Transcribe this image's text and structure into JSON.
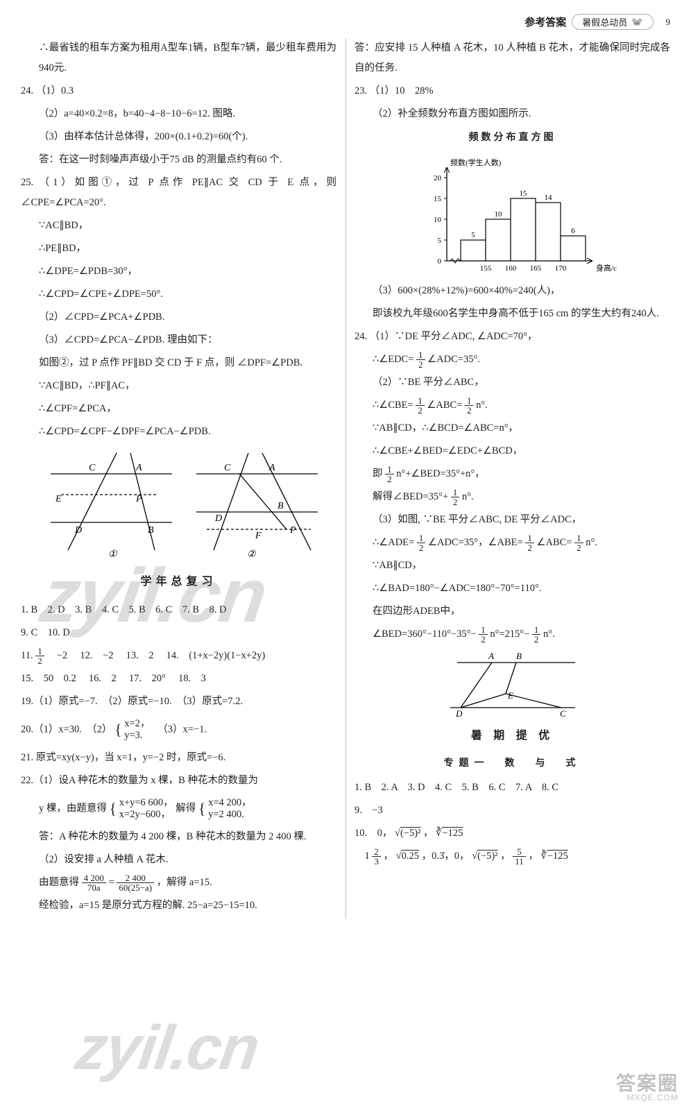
{
  "header": {
    "ref_answer": "参考答案",
    "badge_text": "暑假总动员",
    "page_number": "9"
  },
  "left": {
    "intro": "∴最省钱的租车方案为租用A型车1辆，B型车7辆，最少租车费用为940元.",
    "q24": {
      "num": "24.",
      "p1": "（1）0.3",
      "p2": "（2）a=40×0.2=8，b=40−4−8−10−6=12. 图略.",
      "p3": "（3）由样本估计总体得，200×(0.1+0.2)=60(个).",
      "p3b": "答：在这一时刻噪声声级小于75 dB 的测量点约有60 个."
    },
    "q25": {
      "num": "25.",
      "p1a": "（1）如图①，过 P 点作 PE∥AC 交 CD 于 E 点，则 ∠CPE=∠PCA=20°.",
      "p1b": "∵AC∥BD，",
      "p1c": "∴PE∥BD，",
      "p1d": "∴∠DPE=∠PDB=30°，",
      "p1e": "∴∠CPD=∠CPE+∠DPE=50°.",
      "p2": "（2）∠CPD=∠PCA+∠PDB.",
      "p3a": "（3）∠CPD=∠PCA−∠PDB. 理由如下：",
      "p3b": "如图②，过 P 点作 PF∥BD 交 CD 于 F 点，则 ∠DPF=∠PDB.",
      "p3c": "∵AC∥BD，∴PF∥AC，",
      "p3d": "∴∠CPF=∠PCA，",
      "p3e": "∴∠CPD=∠CPF−∠DPF=∠PCA−∠PDB."
    },
    "diagram": {
      "labels": {
        "C": "C",
        "A": "A",
        "E": "E",
        "P": "P",
        "D": "D",
        "B": "B",
        "F": "F",
        "one": "①",
        "two": "②"
      },
      "stroke": "#000000"
    },
    "review_title": "学年总复习",
    "choices_line1": "1. B　2. D　3. B　4. C　5. B　6. C　7. B　8. D",
    "choices_line2": "9. C　10. D",
    "fill": {
      "q11_num": "11.",
      "q11_a": "1",
      "q11_b": "2",
      "q11_c": "　−2",
      "q12": "12.　−2",
      "q13": "13.　2",
      "q14": "14.　(1+x−2y)(1−x+2y)",
      "q15": "15.　50　0.2",
      "q16": "16.　2",
      "q17": "17.　20°",
      "q18": "18.　3",
      "q19": "19.（1）原式=−7.　（2）原式=−10.　（3）原式=7.2.",
      "q20_pre": "20.（1）x=30.　（2）",
      "q20_sys_top": "x=2，",
      "q20_sys_bot": "y=3.",
      "q20_post": "　（3）x=−1.",
      "q21": "21. 原式=xy(x−y)，当 x=1，y=−2 时，原式=−6.",
      "q22_1a": "22.（1）设A 种花木的数量为 x 棵，B 种花木的数量为",
      "q22_1b_pre": "y 棵，由题意得",
      "q22_sys1_top": "x+y=6 600，",
      "q22_sys1_bot": "x=2y−600，",
      "q22_mid": "解得",
      "q22_sys2_top": "x=4 200，",
      "q22_sys2_bot": "y=2 400.",
      "q22_1c": "答：A 种花木的数量为 4 200 棵，B 种花木的数量为 2 400 棵.",
      "q22_2a": "（2）设安排 a 人种植 A 花木.",
      "q22_2b_pre": "由题意得",
      "q22_f1n": "4 200",
      "q22_f1d": "70a",
      "q22_eq": " = ",
      "q22_f2n": "2 400",
      "q22_f2d": "60(25−a)",
      "q22_2b_post": "，解得 a=15.",
      "q22_2c": "经检验，a=15 是原分式方程的解. 25−a=25−15=10."
    }
  },
  "right": {
    "top_ans": "答：应安排 15 人种植 A 花木，10 人种植 B 花木，才能确保同时完成各自的任务.",
    "q23": {
      "num": "23.",
      "p1": "（1）10　28%",
      "p2": "（2）补全频数分布直方图如图所示.",
      "chart_title": "频数分布直方图",
      "chart": {
        "ylabel": "频数(学生人数)",
        "xlabel": "身高/cm",
        "ytick_max": 20,
        "ytick_step": 5,
        "yticks": [
          "0",
          "5",
          "10",
          "15",
          "20"
        ],
        "xticks": [
          "155",
          "160",
          "165",
          "170"
        ],
        "bars": [
          {
            "label": "5",
            "h": 5
          },
          {
            "label": "10",
            "h": 10
          },
          {
            "label": "15",
            "h": 15
          },
          {
            "label": "14",
            "h": 14
          },
          {
            "label": "6",
            "h": 6
          }
        ],
        "axis_color": "#000000",
        "bar_stroke": "#000000",
        "bar_fill": "#ffffff",
        "font_size": 11
      },
      "p3a": "（3）600×(28%+12%)=600×40%=240(人)，",
      "p3b": "即该校九年级600名学生中身高不低于165 cm 的学生大约有240人."
    },
    "q24": {
      "num": "24.",
      "p1a": "（1）∵DE 平分∠ADC, ∠ADC=70°，",
      "p1b_pre": "∴∠EDC=",
      "half_n": "1",
      "half_d": "2",
      "p1b_post": "∠ADC=35°.",
      "p2a": "（2）∵BE 平分∠ABC，",
      "p2b_pre": "∴∠CBE=",
      "p2b_mid": "∠ABC=",
      "p2b_post": "n°.",
      "p2c": "∵AB∥CD，∴∠BCD=∠ABC=n°，",
      "p2d": "∴∠CBE+∠BED=∠EDC+∠BCD，",
      "p2e_pre": "即",
      "p2e_mid": "n°+∠BED=35°+n°，",
      "p2f_pre": "解得∠BED=35°+",
      "p2f_post": "n°.",
      "p3a": "（3）如图, ∵BE 平分∠ABC, DE 平分∠ADC，",
      "p3b_pre": "∴∠ADE=",
      "p3b_mid1": "∠ADC=35°，∠ABE=",
      "p3b_mid2": "∠ABC=",
      "p3b_post": "n°.",
      "p3c": "∵AB∥CD，",
      "p3d": "∴∠BAD=180°−∠ADC=180°−70°=110°.",
      "p3e": "在四边形ADEB中，",
      "p3f_pre": "∠BED=360°−110°−35°−",
      "p3f_mid": "n°=215°−",
      "p3f_post": "n°.",
      "diagram_labels": {
        "A": "A",
        "B": "B",
        "D": "D",
        "E": "E",
        "C": "C"
      }
    },
    "summer_title": "暑 期 提 优",
    "topic1_title": "专题一　数　与　式",
    "t1_line1": "1. B　2. A　3. D　4. C　5. B　6. C　7. A　8. C",
    "t1_line2": "9.　−3",
    "t1_line3_pre": "10.　0，",
    "t1_r1_in": "(−5)²",
    "t1_line3_mid": "，",
    "t1_r2_in": "−125",
    "t1_line4_pre": "　1",
    "t1_f1n": "2",
    "t1_f1d": "3",
    "t1_line4_a": "，",
    "t1_r3_in": "0.25",
    "t1_line4_b": "，0.3̇，0，",
    "t1_r4_in": "(−5)²",
    "t1_line4_c": "，",
    "t1_f2n": "5",
    "t1_f2d": "11",
    "t1_line4_d": "，",
    "t1_r5_in": "−125"
  },
  "watermarks": {
    "wm1": "zyil.cn",
    "wm2": "zyil.cn",
    "corner_top": "答案圈",
    "corner_bottom": "MXQE.COM"
  },
  "colors": {
    "text": "#222222",
    "paper": "#ffffff",
    "watermark": "rgba(120,120,120,0.25)"
  }
}
